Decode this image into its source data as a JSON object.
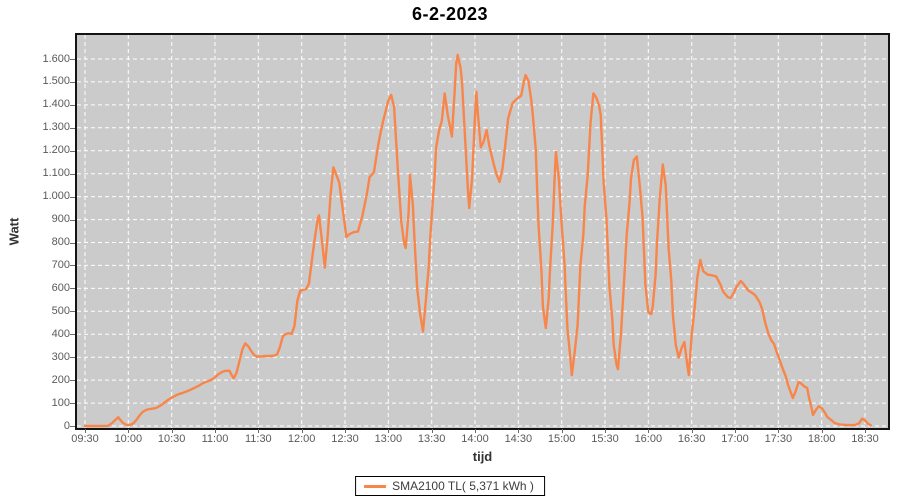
{
  "title": "6-2-2023",
  "colors": {
    "line": "#f8854a",
    "plot_bg": "#cbcbcb",
    "grid": "#ffffff",
    "plot_border": "#141414",
    "tick_text": "#5a5a5a",
    "axis_label_text": "#333333",
    "title_text": "#000000",
    "page_bg": "#ffffff",
    "legend_border": "#000000"
  },
  "legend": {
    "label": "SMA2100 TL( 5,371 kWh )"
  },
  "chart_data": {
    "type": "line",
    "title": "6-2-2023",
    "xlabel": "tijd",
    "ylabel": "Watt",
    "grid": "white dashed on gray plot background",
    "legend_position": "bottom-center",
    "x_tick_labels": [
      "09:30",
      "10:00",
      "10:30",
      "11:00",
      "11:30",
      "12:00",
      "12:30",
      "13:00",
      "13:30",
      "14:00",
      "14:30",
      "15:00",
      "15:30",
      "16:00",
      "16:30",
      "17:00",
      "17:30",
      "18:00",
      "18:30"
    ],
    "y_tick_values": [
      0,
      100,
      200,
      300,
      400,
      500,
      600,
      700,
      800,
      900,
      1000,
      1100,
      1200,
      1300,
      1400,
      1500,
      1600
    ],
    "y_tick_labels": [
      "0",
      "100",
      "200",
      "300",
      "400",
      "500",
      "600",
      "700",
      "800",
      "900",
      "1.000",
      "1.100",
      "1.200",
      "1.300",
      "1.400",
      "1.500",
      "1.600"
    ],
    "ylim": [
      0,
      1704
    ],
    "x_axis_unit": "time of day, 30-min ticks from 09:30 to 18:30",
    "series": [
      {
        "name": "SMA2100 TL( 5,371 kWh )",
        "color": "#f8854a",
        "x_unit": "minutes after 09:30",
        "y_unit": "Watt",
        "points": [
          [
            0,
            0
          ],
          [
            10,
            0
          ],
          [
            16,
            1
          ],
          [
            19,
            14
          ],
          [
            23,
            38
          ],
          [
            26,
            15
          ],
          [
            29,
            4
          ],
          [
            32,
            6
          ],
          [
            34,
            15
          ],
          [
            36,
            30
          ],
          [
            38,
            48
          ],
          [
            40,
            62
          ],
          [
            43,
            72
          ],
          [
            46,
            75
          ],
          [
            49,
            78
          ],
          [
            52,
            88
          ],
          [
            55,
            102
          ],
          [
            58,
            116
          ],
          [
            61,
            127
          ],
          [
            64,
            137
          ],
          [
            67,
            143
          ],
          [
            70,
            150
          ],
          [
            73,
            158
          ],
          [
            76,
            167
          ],
          [
            79,
            176
          ],
          [
            82,
            188
          ],
          [
            85,
            195
          ],
          [
            88,
            203
          ],
          [
            90,
            212
          ],
          [
            92,
            224
          ],
          [
            95,
            236
          ],
          [
            97,
            240
          ],
          [
            100,
            241
          ],
          [
            101,
            228
          ],
          [
            103,
            207
          ],
          [
            105,
            235
          ],
          [
            107,
            285
          ],
          [
            109,
            335
          ],
          [
            111,
            360
          ],
          [
            113,
            348
          ],
          [
            115,
            328
          ],
          [
            117,
            310
          ],
          [
            119,
            302
          ],
          [
            122,
            303
          ],
          [
            125,
            305
          ],
          [
            128,
            305
          ],
          [
            131,
            307
          ],
          [
            133,
            312
          ],
          [
            135,
            345
          ],
          [
            137,
            392
          ],
          [
            139,
            401
          ],
          [
            141,
            404
          ],
          [
            143,
            402
          ],
          [
            145,
            435
          ],
          [
            146,
            490
          ],
          [
            147,
            545
          ],
          [
            149,
            590
          ],
          [
            151,
            594
          ],
          [
            153,
            597
          ],
          [
            155,
            620
          ],
          [
            157,
            720
          ],
          [
            159,
            815
          ],
          [
            161,
            900
          ],
          [
            162,
            918
          ],
          [
            164,
            810
          ],
          [
            166,
            690
          ],
          [
            168,
            830
          ],
          [
            170,
            1010
          ],
          [
            172,
            1128
          ],
          [
            174,
            1095
          ],
          [
            176,
            1062
          ],
          [
            178,
            965
          ],
          [
            180,
            870
          ],
          [
            181,
            824
          ],
          [
            183,
            836
          ],
          [
            186,
            845
          ],
          [
            189,
            848
          ],
          [
            192,
            915
          ],
          [
            195,
            1007
          ],
          [
            197,
            1085
          ],
          [
            200,
            1105
          ],
          [
            203,
            1225
          ],
          [
            205,
            1290
          ],
          [
            207,
            1345
          ],
          [
            210,
            1418
          ],
          [
            212,
            1443
          ],
          [
            214,
            1390
          ],
          [
            215,
            1280
          ],
          [
            217,
            1080
          ],
          [
            219,
            890
          ],
          [
            221,
            795
          ],
          [
            222,
            776
          ],
          [
            224,
            930
          ],
          [
            225,
            1095
          ],
          [
            227,
            960
          ],
          [
            228,
            830
          ],
          [
            230,
            600
          ],
          [
            232,
            490
          ],
          [
            234,
            412
          ],
          [
            236,
            550
          ],
          [
            238,
            700
          ],
          [
            239,
            818
          ],
          [
            241,
            1000
          ],
          [
            242,
            1090
          ],
          [
            243,
            1210
          ],
          [
            245,
            1285
          ],
          [
            247,
            1330
          ],
          [
            249,
            1450
          ],
          [
            251,
            1360
          ],
          [
            254,
            1262
          ],
          [
            256,
            1470
          ],
          [
            257,
            1580
          ],
          [
            258,
            1618
          ],
          [
            260,
            1560
          ],
          [
            261,
            1500
          ],
          [
            263,
            1270
          ],
          [
            265,
            1040
          ],
          [
            266,
            950
          ],
          [
            268,
            1080
          ],
          [
            270,
            1350
          ],
          [
            271,
            1457
          ],
          [
            272,
            1360
          ],
          [
            274,
            1215
          ],
          [
            276,
            1240
          ],
          [
            278,
            1290
          ],
          [
            280,
            1220
          ],
          [
            283,
            1140
          ],
          [
            285,
            1095
          ],
          [
            287,
            1064
          ],
          [
            289,
            1120
          ],
          [
            291,
            1225
          ],
          [
            293,
            1342
          ],
          [
            296,
            1408
          ],
          [
            299,
            1426
          ],
          [
            302,
            1440
          ],
          [
            304,
            1505
          ],
          [
            305,
            1530
          ],
          [
            307,
            1505
          ],
          [
            309,
            1420
          ],
          [
            310,
            1356
          ],
          [
            312,
            1210
          ],
          [
            313,
            1037
          ],
          [
            314,
            870
          ],
          [
            316,
            680
          ],
          [
            317,
            520
          ],
          [
            319,
            427
          ],
          [
            321,
            558
          ],
          [
            322,
            689
          ],
          [
            324,
            900
          ],
          [
            325,
            1060
          ],
          [
            326,
            1195
          ],
          [
            328,
            1080
          ],
          [
            330,
            876
          ],
          [
            332,
            700
          ],
          [
            333,
            558
          ],
          [
            334,
            427
          ],
          [
            336,
            300
          ],
          [
            337,
            222
          ],
          [
            339,
            323
          ],
          [
            341,
            440
          ],
          [
            343,
            700
          ],
          [
            345,
            833
          ],
          [
            346,
            963
          ],
          [
            348,
            1094
          ],
          [
            350,
            1325
          ],
          [
            352,
            1450
          ],
          [
            354,
            1432
          ],
          [
            356,
            1395
          ],
          [
            357,
            1356
          ],
          [
            358,
            1225
          ],
          [
            359,
            1064
          ],
          [
            361,
            907
          ],
          [
            362,
            759
          ],
          [
            363,
            615
          ],
          [
            365,
            471
          ],
          [
            366,
            353
          ],
          [
            368,
            266
          ],
          [
            369,
            248
          ],
          [
            371,
            397
          ],
          [
            373,
            610
          ],
          [
            375,
            833
          ],
          [
            377,
            977
          ],
          [
            378,
            1080
          ],
          [
            380,
            1160
          ],
          [
            382,
            1175
          ],
          [
            384,
            1051
          ],
          [
            386,
            907
          ],
          [
            387,
            759
          ],
          [
            388,
            615
          ],
          [
            390,
            497
          ],
          [
            392,
            488
          ],
          [
            393,
            519
          ],
          [
            395,
            660
          ],
          [
            396,
            800
          ],
          [
            398,
            1000
          ],
          [
            400,
            1140
          ],
          [
            402,
            1050
          ],
          [
            403,
            920
          ],
          [
            404,
            776
          ],
          [
            406,
            628
          ],
          [
            407,
            484
          ],
          [
            409,
            353
          ],
          [
            411,
            298
          ],
          [
            413,
            340
          ],
          [
            415,
            366
          ],
          [
            417,
            266
          ],
          [
            418,
            222
          ],
          [
            420,
            397
          ],
          [
            422,
            514
          ],
          [
            424,
            650
          ],
          [
            426,
            724
          ],
          [
            428,
            675
          ],
          [
            431,
            660
          ],
          [
            434,
            657
          ],
          [
            437,
            652
          ],
          [
            440,
            615
          ],
          [
            442,
            584
          ],
          [
            445,
            562
          ],
          [
            447,
            558
          ],
          [
            449,
            580
          ],
          [
            451,
            606
          ],
          [
            454,
            632
          ],
          [
            456,
            618
          ],
          [
            459,
            592
          ],
          [
            462,
            580
          ],
          [
            464,
            570
          ],
          [
            467,
            540
          ],
          [
            469,
            506
          ],
          [
            471,
            449
          ],
          [
            473,
            405
          ],
          [
            475,
            375
          ],
          [
            477,
            358
          ],
          [
            479,
            320
          ],
          [
            481,
            286
          ],
          [
            483,
            250
          ],
          [
            485,
            218
          ],
          [
            487,
            175
          ],
          [
            489,
            140
          ],
          [
            490,
            122
          ],
          [
            492,
            152
          ],
          [
            494,
            192
          ],
          [
            496,
            184
          ],
          [
            498,
            172
          ],
          [
            500,
            166
          ],
          [
            501,
            130
          ],
          [
            503,
            78
          ],
          [
            504,
            48
          ],
          [
            506,
            70
          ],
          [
            508,
            86
          ],
          [
            510,
            78
          ],
          [
            512,
            60
          ],
          [
            514,
            39
          ],
          [
            517,
            24
          ],
          [
            519,
            13
          ],
          [
            523,
            6
          ],
          [
            528,
            4
          ],
          [
            533,
            4
          ],
          [
            536,
            12
          ],
          [
            538,
            32
          ],
          [
            540,
            25
          ],
          [
            542,
            10
          ],
          [
            544,
            3
          ]
        ]
      }
    ]
  }
}
